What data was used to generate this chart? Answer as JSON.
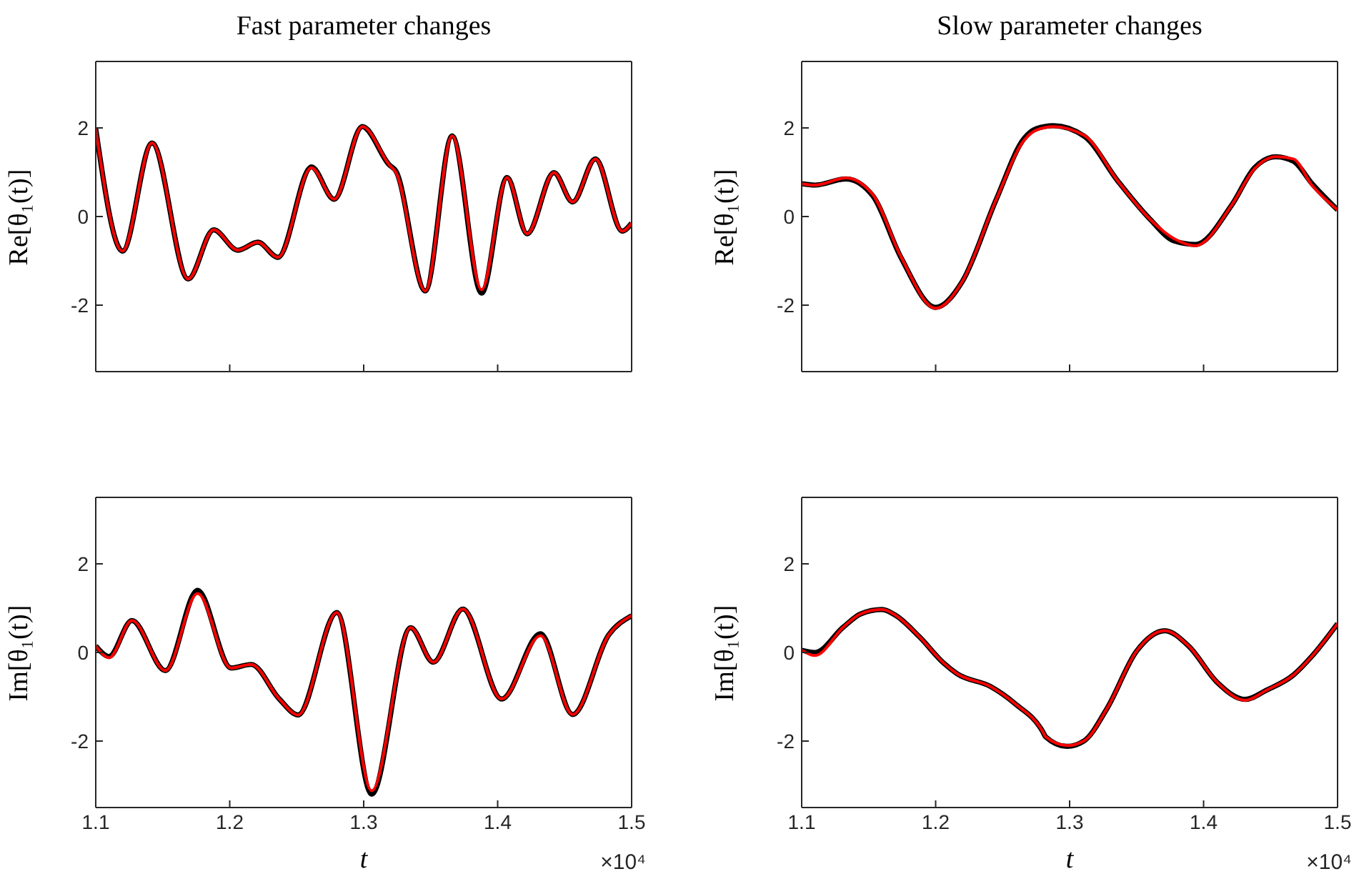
{
  "chart_data": [
    {
      "type": "line",
      "title": "Fast parameter changes",
      "ylabel": "Re[θ₁(t)]",
      "xlim": [
        1.1,
        1.5
      ],
      "xticks": [
        1.1,
        1.2,
        1.3,
        1.4,
        1.5
      ],
      "ylim": [
        -3.5,
        3.5
      ],
      "yticks": [
        -2,
        0,
        2
      ],
      "tick_labels": "y",
      "x": [
        1.1,
        1.12,
        1.142,
        1.169,
        1.188,
        1.206,
        1.221,
        1.236,
        1.261,
        1.278,
        1.299,
        1.319,
        1.324,
        1.346,
        1.366,
        1.388,
        1.407,
        1.422,
        1.442,
        1.456,
        1.473,
        1.493,
        1.5
      ],
      "series": [
        {
          "color": "#000000",
          "values": [
            1.98,
            -0.78,
            1.66,
            -1.41,
            -0.3,
            -0.76,
            -0.58,
            -0.92,
            1.12,
            0.39,
            2.03,
            1.17,
            1.03,
            -1.68,
            1.82,
            -1.73,
            0.88,
            -0.39,
            0.99,
            0.33,
            1.3,
            -0.33,
            -0.15
          ]
        },
        {
          "color": "#ff0000",
          "values": [
            1.98,
            -0.78,
            1.66,
            -1.41,
            -0.3,
            -0.76,
            -0.58,
            -0.92,
            1.1,
            0.39,
            2.03,
            1.17,
            1.0,
            -1.68,
            1.82,
            -1.65,
            0.88,
            -0.39,
            0.99,
            0.33,
            1.3,
            -0.33,
            -0.15
          ]
        }
      ]
    },
    {
      "type": "line",
      "title": "Slow parameter changes",
      "ylabel": "Re[θ₁(t)]",
      "xlim": [
        1.1,
        1.5
      ],
      "xticks": [
        1.1,
        1.2,
        1.3,
        1.4,
        1.5
      ],
      "ylim": [
        -3.5,
        3.5
      ],
      "yticks": [
        -2,
        0,
        2
      ],
      "tick_labels": "y",
      "x": [
        1.1,
        1.11,
        1.133,
        1.153,
        1.174,
        1.2,
        1.22,
        1.245,
        1.266,
        1.275,
        1.288,
        1.311,
        1.336,
        1.36,
        1.378,
        1.394,
        1.421,
        1.438,
        1.454,
        1.467,
        1.481,
        1.5
      ],
      "series": [
        {
          "color": "#000000",
          "values": [
            0.74,
            0.71,
            0.85,
            0.47,
            -0.92,
            -2.05,
            -1.46,
            0.37,
            1.76,
            1.98,
            2.05,
            1.81,
            0.8,
            -0.06,
            -0.55,
            -0.63,
            0.26,
            1.1,
            1.35,
            1.25,
            0.74,
            0.15
          ]
        },
        {
          "color": "#ff0000",
          "values": [
            0.74,
            0.71,
            0.87,
            0.5,
            -0.9,
            -2.07,
            -1.46,
            0.37,
            1.72,
            1.95,
            2.03,
            1.83,
            0.8,
            -0.06,
            -0.5,
            -0.66,
            0.26,
            1.08,
            1.35,
            1.3,
            0.7,
            0.15
          ]
        }
      ]
    },
    {
      "type": "line",
      "ylabel": "Im[θ₁(t)]",
      "xlabel": "t",
      "annotations": [
        "×10⁴"
      ],
      "xlim": [
        1.1,
        1.5
      ],
      "xticks": [
        1.1,
        1.2,
        1.3,
        1.4,
        1.5
      ],
      "ylim": [
        -3.5,
        3.5
      ],
      "yticks": [
        -2,
        0,
        2
      ],
      "x": [
        1.1,
        1.11,
        1.127,
        1.152,
        1.176,
        1.201,
        1.216,
        1.237,
        1.251,
        1.28,
        1.306,
        1.335,
        1.352,
        1.374,
        1.403,
        1.432,
        1.456,
        1.483,
        1.5
      ],
      "series": [
        {
          "color": "#000000",
          "values": [
            0.15,
            -0.09,
            0.72,
            -0.41,
            1.4,
            -0.35,
            -0.27,
            -1.05,
            -1.41,
            0.9,
            -3.2,
            0.56,
            -0.22,
            0.98,
            -1.05,
            0.42,
            -1.4,
            0.4,
            0.83
          ]
        },
        {
          "color": "#ff0000",
          "values": [
            0.15,
            -0.12,
            0.72,
            -0.41,
            1.33,
            -0.35,
            -0.27,
            -1.05,
            -1.41,
            0.9,
            -3.12,
            0.56,
            -0.22,
            0.98,
            -1.05,
            0.38,
            -1.4,
            0.4,
            0.83
          ]
        }
      ]
    },
    {
      "type": "line",
      "ylabel": "Im[θ₁(t)]",
      "xlabel": "t",
      "annotations": [
        "×10⁴"
      ],
      "xlim": [
        1.1,
        1.5
      ],
      "xticks": [
        1.1,
        1.2,
        1.3,
        1.4,
        1.5
      ],
      "ylim": [
        -3.5,
        3.5
      ],
      "yticks": [
        -2,
        0,
        2
      ],
      "x": [
        1.1,
        1.11,
        1.131,
        1.144,
        1.16,
        1.17,
        1.188,
        1.206,
        1.216,
        1.241,
        1.259,
        1.28,
        1.282,
        1.298,
        1.311,
        1.328,
        1.35,
        1.371,
        1.389,
        1.41,
        1.431,
        1.447,
        1.467,
        1.481,
        1.5
      ],
      "series": [
        {
          "color": "#000000",
          "values": [
            0.05,
            0.0,
            0.57,
            0.87,
            0.97,
            0.84,
            0.35,
            -0.24,
            -0.48,
            -0.77,
            -1.15,
            -1.79,
            -1.9,
            -2.12,
            -1.99,
            -1.26,
            0.03,
            0.49,
            0.14,
            -0.67,
            -1.06,
            -0.85,
            -0.51,
            -0.08,
            0.65
          ]
        },
        {
          "color": "#ff0000",
          "values": [
            0.05,
            -0.07,
            0.57,
            0.87,
            0.97,
            0.84,
            0.35,
            -0.24,
            -0.48,
            -0.77,
            -1.15,
            -1.79,
            -1.9,
            -2.1,
            -1.99,
            -1.26,
            0.03,
            0.49,
            0.14,
            -0.67,
            -1.08,
            -0.85,
            -0.51,
            -0.08,
            0.65
          ]
        }
      ]
    }
  ]
}
